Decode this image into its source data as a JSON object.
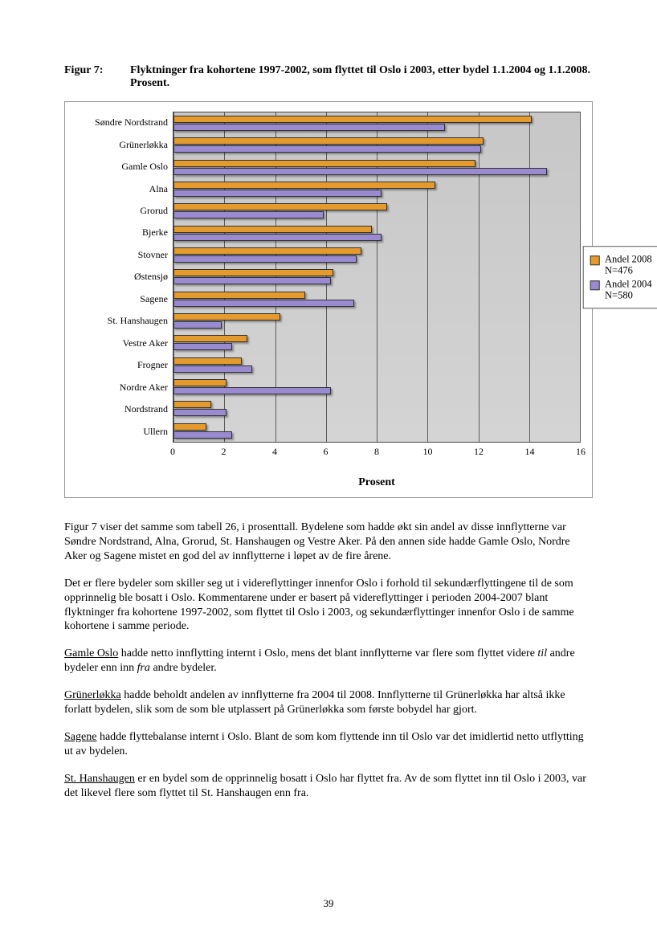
{
  "figure": {
    "label": "Figur 7:",
    "title": "Flyktninger fra kohortene 1997-2002, som flyttet til Oslo i 2003, etter bydel 1.1.2004 og 1.1.2008. Prosent."
  },
  "chart": {
    "type": "bar",
    "orientation": "horizontal",
    "xmin": 0,
    "xmax": 16,
    "xtick_step": 2,
    "xticks": [
      "0",
      "2",
      "4",
      "6",
      "8",
      "10",
      "12",
      "14",
      "16"
    ],
    "xlabel": "Prosent",
    "categories": [
      "Søndre Nordstrand",
      "Grünerløkka",
      "Gamle Oslo",
      "Alna",
      "Grorud",
      "Bjerke",
      "Stovner",
      "Østensjø",
      "Sagene",
      "St. Hanshaugen",
      "Vestre Aker",
      "Frogner",
      "Nordre Aker",
      "Nordstrand",
      "Ullern"
    ],
    "series": [
      {
        "name": "Andel 2008 N=476",
        "color": "#e59a2e",
        "values": [
          14.1,
          12.2,
          11.9,
          10.3,
          8.4,
          7.8,
          7.4,
          6.3,
          5.2,
          4.2,
          2.9,
          2.7,
          2.1,
          1.5,
          1.3
        ]
      },
      {
        "name": "Andel 2004 N=580",
        "color": "#9a8bd1",
        "values": [
          10.7,
          12.1,
          14.7,
          8.2,
          5.9,
          8.2,
          7.2,
          6.2,
          7.1,
          1.9,
          2.3,
          3.1,
          6.2,
          2.1,
          2.3
        ]
      }
    ],
    "grid_color": "#5b5b5b",
    "background_gradient": [
      "#c7c7c7",
      "#d4d4d4"
    ],
    "bar_border": "#333333",
    "label_fontsize": 12,
    "xlabel_fontsize": 14
  },
  "paragraphs": {
    "p1": "Figur 7 viser det samme som tabell 26, i prosenttall. Bydelene som hadde økt sin andel av disse innflytterne var Søndre Nordstrand, Alna, Grorud, St. Hanshaugen og Vestre Aker. På den annen side hadde Gamle Oslo, Nordre Aker og Sagene mistet en god del av innflytterne i løpet av de fire årene.",
    "p2": "Det er flere bydeler som skiller seg ut i videreflyttinger innenfor Oslo i forhold til sekundærflyttingene til de som opprinnelig ble bosatt i Oslo. Kommentarene under er basert på videreflyttinger i perioden 2004-2007 blant flyktninger fra kohortene 1997-2002, som flyttet til Oslo i 2003, og sekundærflyttinger innenfor Oslo i de samme kohortene i samme periode.",
    "p3_u": "Gamle Oslo",
    "p3_rest_a": " hadde netto innflytting internt i Oslo, mens det blant innflytterne var flere som flyttet videre ",
    "p3_em1": "til",
    "p3_rest_b": " andre bydeler enn inn ",
    "p3_em2": "fra",
    "p3_rest_c": " andre bydeler.",
    "p4_u": "Grünerløkka",
    "p4_rest": " hadde beholdt andelen av innflytterne fra 2004 til 2008. Innflytterne til Grünerløkka har altså ikke forlatt bydelen, slik som de som ble utplassert på Grünerløkka som første bobydel har gjort.",
    "p5_u": "Sagene",
    "p5_rest": " hadde flyttebalanse internt i Oslo. Blant de som kom flyttende inn til Oslo var det imidlertid netto utflytting ut av bydelen.",
    "p6_u": "St. Hanshaugen",
    "p6_rest": " er en bydel som de opprinnelig bosatt i Oslo har flyttet fra. Av de som flyttet inn til Oslo i 2003, var det likevel flere som flyttet til St. Hanshaugen enn fra."
  },
  "page_number": "39"
}
